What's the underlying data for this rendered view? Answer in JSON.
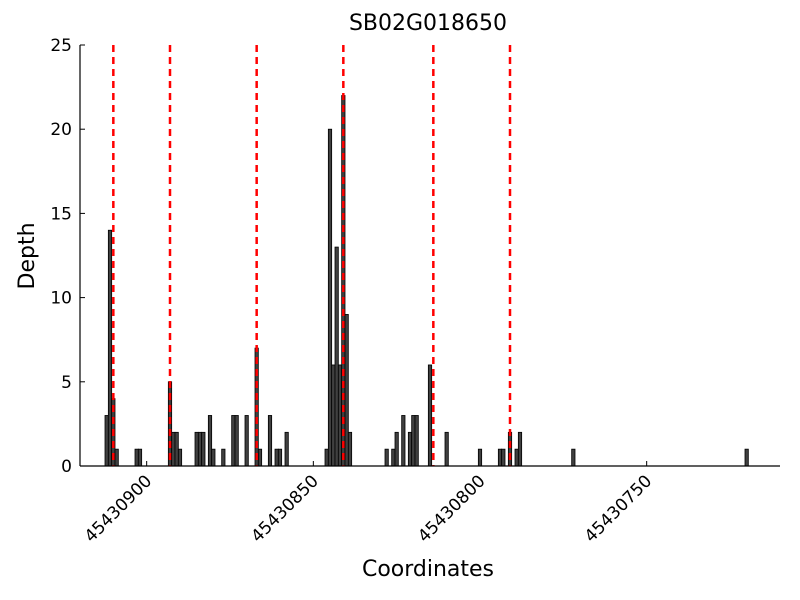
{
  "chart_data": {
    "type": "bar",
    "title": "SB02G018650",
    "xlabel": "Coordinates",
    "ylabel": "Depth",
    "x": [
      45430912,
      45430911,
      45430910,
      45430909,
      45430903,
      45430902,
      45430893,
      45430892,
      45430891,
      45430890,
      45430885,
      45430884,
      45430883,
      45430881,
      45430880,
      45430877,
      45430874,
      45430873,
      45430870,
      45430867,
      45430866,
      45430863,
      45430861,
      45430860,
      45430858,
      45430846,
      45430845,
      45430844,
      45430843,
      45430842,
      45430841,
      45430840,
      45430839,
      45430828,
      45430826,
      45430825,
      45430823,
      45430821,
      45430820,
      45430819,
      45430815,
      45430810,
      45430800,
      45430794,
      45430793,
      45430791,
      45430789,
      45430788,
      45430772,
      45430720
    ],
    "values": [
      3,
      14,
      4,
      1,
      1,
      1,
      5,
      2,
      2,
      1,
      2,
      2,
      2,
      3,
      1,
      1,
      3,
      3,
      3,
      7,
      1,
      3,
      1,
      1,
      2,
      1,
      20,
      6,
      13,
      6,
      22,
      9,
      2,
      1,
      1,
      2,
      3,
      2,
      3,
      3,
      6,
      2,
      1,
      1,
      1,
      2,
      1,
      2,
      1,
      1
    ],
    "color": "#404040",
    "vlines": [
      45430910,
      45430893,
      45430867,
      45430841,
      45430814,
      45430791
    ],
    "vline_color": "#ff0000",
    "xlim": [
      45430920,
      45430710
    ],
    "xticks": [
      45430900,
      45430850,
      45430800,
      45430750
    ],
    "ylim": [
      0,
      25
    ],
    "yticks": [
      0,
      5,
      10,
      15,
      20,
      25
    ]
  }
}
